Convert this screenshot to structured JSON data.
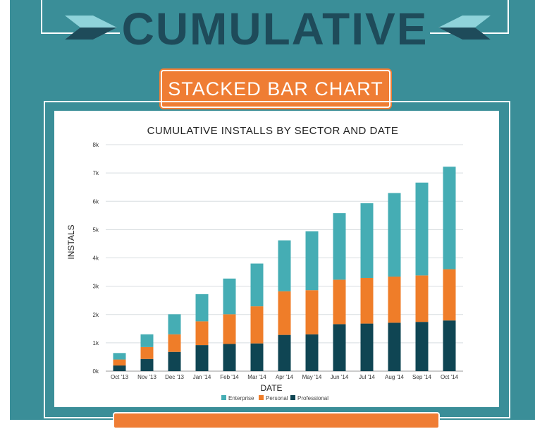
{
  "header": {
    "title": "CUMULATIVE",
    "subtitle": "STACKED BAR CHART"
  },
  "colors": {
    "background_panel": "#3a8e98",
    "title_text": "#1e4b5a",
    "accent_orange": "#ef7d34",
    "arrow_light": "#8fd3da",
    "arrow_dark": "#1e4b5a"
  },
  "chart_data": {
    "type": "bar",
    "stacked": true,
    "title": "CUMULATIVE INSTALLS BY SECTOR AND DATE",
    "xlabel": "DATE",
    "ylabel": "INSTALS",
    "ylim": [
      0,
      8000
    ],
    "yticks": [
      "0k",
      "1k",
      "2k",
      "3k",
      "4k",
      "5k",
      "6k",
      "7k",
      "8k"
    ],
    "grid": true,
    "legend_position": "bottom",
    "categories": [
      "Oct '13",
      "Nov '13",
      "Dec '13",
      "Jan '14",
      "Feb '14",
      "Mar '14",
      "Apr '14",
      "May '14",
      "Jun '14",
      "Jul '14",
      "Aug '14",
      "Sep '14",
      "Oct '14"
    ],
    "series": [
      {
        "name": "Professional",
        "color": "#0f4553",
        "values": [
          200,
          430,
          680,
          920,
          960,
          980,
          1280,
          1300,
          1660,
          1680,
          1710,
          1740,
          1790
        ]
      },
      {
        "name": "Personal",
        "color": "#ef7d29",
        "values": [
          210,
          420,
          620,
          840,
          1050,
          1310,
          1540,
          1560,
          1570,
          1610,
          1630,
          1640,
          1810
        ]
      },
      {
        "name": "Enterprise",
        "color": "#45adb4",
        "values": [
          230,
          450,
          710,
          960,
          1260,
          1510,
          1800,
          2080,
          2350,
          2640,
          2950,
          3280,
          3620
        ]
      }
    ],
    "legend_order": [
      "Enterprise",
      "Personal",
      "Professional"
    ]
  }
}
